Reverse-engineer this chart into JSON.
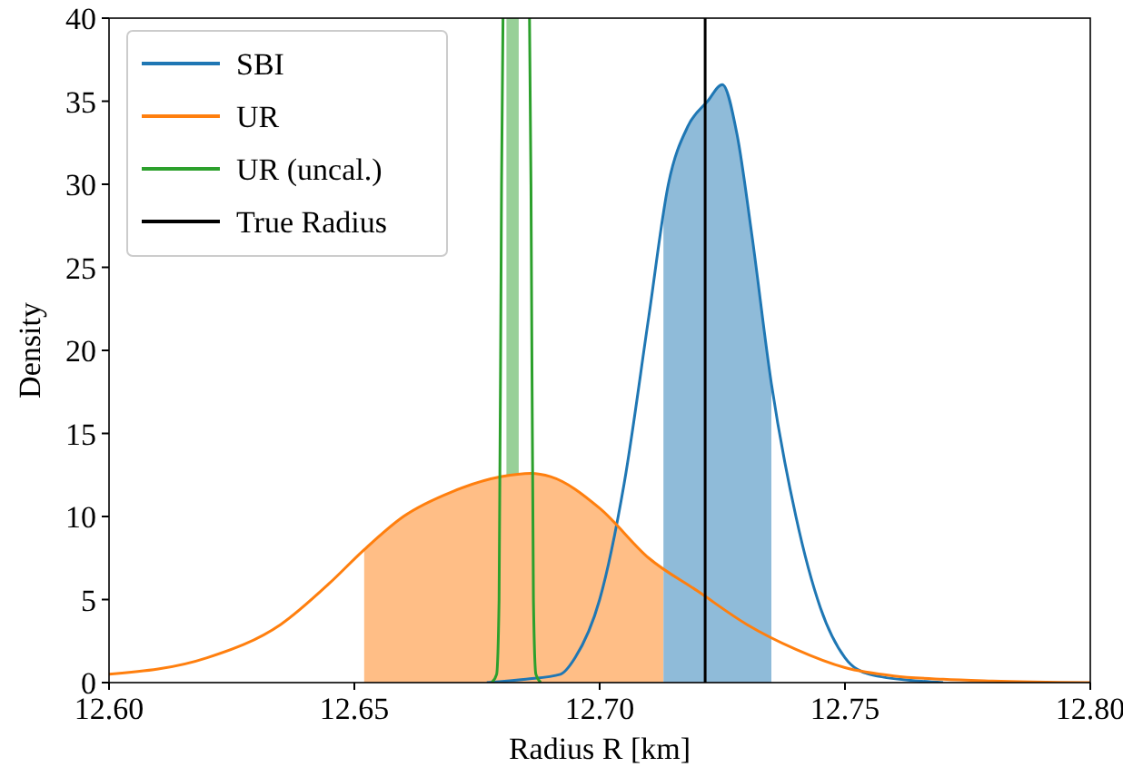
{
  "chart_data": {
    "type": "line",
    "xlabel": "Radius R [km]",
    "ylabel": "Density",
    "xlim": [
      12.6,
      12.8
    ],
    "xticks": [
      {
        "value": 12.6,
        "label": "12.60"
      },
      {
        "value": 12.65,
        "label": "12.65"
      },
      {
        "value": 12.7,
        "label": "12.70"
      },
      {
        "value": 12.75,
        "label": "12.75"
      },
      {
        "value": 12.8,
        "label": "12.80"
      }
    ],
    "ylim": [
      0,
      40
    ],
    "yticks": [
      0,
      5,
      10,
      15,
      20,
      25,
      30,
      35,
      40
    ],
    "grid": false,
    "legend": "top left",
    "series": [
      {
        "type": "area",
        "color": "#ffbe86",
        "x": [
          12.652,
          12.66,
          12.67,
          12.68,
          12.686,
          12.69,
          12.7,
          12.71,
          12.713
        ],
        "values": [
          8,
          10,
          11.5,
          12.4,
          12.6,
          12.4,
          10.5,
          7.5,
          6.8
        ]
      },
      {
        "type": "area",
        "color": "#8fbbd9",
        "x": [
          12.713,
          12.714,
          12.718,
          12.722,
          12.725,
          12.728,
          12.731,
          12.735
        ],
        "values": [
          28.5,
          30,
          33.5,
          35,
          36,
          33,
          27,
          18
        ]
      },
      {
        "name": "SBI",
        "color": "#1f77b4",
        "x": [
          12.677,
          12.685,
          12.692,
          12.695,
          12.7,
          12.705,
          12.71,
          12.714,
          12.718,
          12.722,
          12.725,
          12.728,
          12.731,
          12.735,
          12.74,
          12.745,
          12.75,
          12.755,
          12.765,
          12.77
        ],
        "values": [
          0,
          0.2,
          0.5,
          1.5,
          5,
          12,
          22,
          30,
          33.5,
          35,
          36,
          33,
          27,
          18,
          10,
          4.5,
          1.5,
          0.5,
          0.1,
          0
        ]
      },
      {
        "name": "UR",
        "color": "#ff7f0e",
        "x": [
          12.6,
          12.62,
          12.635,
          12.645,
          12.652,
          12.66,
          12.67,
          12.68,
          12.686,
          12.69,
          12.7,
          12.71,
          12.72,
          12.73,
          12.74,
          12.75,
          12.76,
          12.77,
          12.78,
          12.8
        ],
        "values": [
          0.5,
          1.5,
          3.5,
          6,
          8,
          10,
          11.5,
          12.4,
          12.6,
          12.4,
          10.5,
          7.5,
          5.5,
          3.5,
          2,
          0.9,
          0.4,
          0.2,
          0.1,
          0
        ]
      },
      {
        "name": "UR (uncal.)",
        "color": "#2ca02c",
        "x": [
          12.678,
          12.679,
          12.6795,
          12.68,
          12.6803,
          12.683,
          12.6857,
          12.686,
          12.6865,
          12.687,
          12.688
        ],
        "values": [
          0,
          0.5,
          5,
          30,
          40,
          null,
          40,
          30,
          5,
          0.5,
          0
        ]
      },
      {
        "name": "True Radius",
        "color": "#000000",
        "x": [
          12.7215,
          12.7215
        ],
        "values": [
          0,
          40
        ]
      }
    ],
    "bands": [
      {
        "axis": "x",
        "from": 12.681,
        "to": 12.6835,
        "color": "#98d098"
      }
    ]
  }
}
